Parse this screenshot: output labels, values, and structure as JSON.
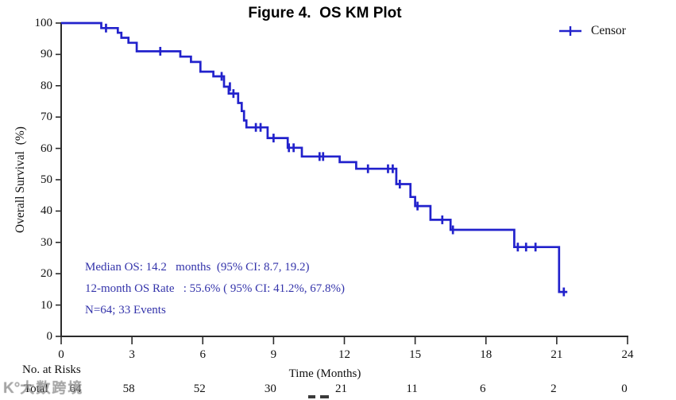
{
  "title": "Figure 4.  OS KM Plot",
  "legend": {
    "label": "Censor"
  },
  "axes": {
    "ylabel": "Overall Survival  (%)",
    "xlabel": "Time (Months)",
    "x_ticks": [
      0,
      3,
      6,
      9,
      12,
      15,
      18,
      21,
      24
    ],
    "y_ticks": [
      0,
      10,
      20,
      30,
      40,
      50,
      60,
      70,
      80,
      90,
      100
    ]
  },
  "stats": {
    "median_line": "Median OS: 14.2   months  (95% CI: 8.7, 19.2)",
    "rate_line": "12-month OS Rate   : 55.6% ( 95% CI: 41.2%, 67.8%)",
    "n_line": "N=64; 33 Events"
  },
  "risk_table": {
    "heading": "No. at Risks",
    "row_label": "Total",
    "values": [
      "64",
      "58",
      "52",
      "30",
      "21",
      "11",
      "6",
      "2",
      "0"
    ]
  },
  "watermark": {
    "logo": "K°",
    "text": "大数跨境"
  },
  "colors": {
    "curve": "#2222cc",
    "annotation": "#3333aa",
    "axis": "#2b2b2b",
    "text": "#111111"
  },
  "chart_data": {
    "type": "line",
    "subtype": "kaplan-meier-step",
    "title": "Figure 4.  OS KM Plot",
    "xlabel": "Time (Months)",
    "ylabel": "Overall Survival (%)",
    "xlim": [
      0,
      24
    ],
    "ylim": [
      0,
      100
    ],
    "grid": false,
    "legend_position": "top-right",
    "legend_entries": [
      "Censor"
    ],
    "series": [
      {
        "name": "Total",
        "color": "#2222cc",
        "steps": [
          [
            0,
            100
          ],
          [
            1.7,
            100
          ],
          [
            1.7,
            98.4
          ],
          [
            2.4,
            98.4
          ],
          [
            2.4,
            96.9
          ],
          [
            2.55,
            96.9
          ],
          [
            2.55,
            95.3
          ],
          [
            2.85,
            95.3
          ],
          [
            2.85,
            93.7
          ],
          [
            3.2,
            93.7
          ],
          [
            3.2,
            91.0
          ],
          [
            5.05,
            91.0
          ],
          [
            5.05,
            89.3
          ],
          [
            5.5,
            89.3
          ],
          [
            5.5,
            87.6
          ],
          [
            5.9,
            87.6
          ],
          [
            5.9,
            84.5
          ],
          [
            6.45,
            84.5
          ],
          [
            6.45,
            83.0
          ],
          [
            6.9,
            83.0
          ],
          [
            6.9,
            79.7
          ],
          [
            7.1,
            79.7
          ],
          [
            7.1,
            77.5
          ],
          [
            7.5,
            77.5
          ],
          [
            7.5,
            74.5
          ],
          [
            7.65,
            74.5
          ],
          [
            7.65,
            71.9
          ],
          [
            7.75,
            71.9
          ],
          [
            7.75,
            68.9
          ],
          [
            7.85,
            68.9
          ],
          [
            7.85,
            66.7
          ],
          [
            8.75,
            66.7
          ],
          [
            8.75,
            63.3
          ],
          [
            9.6,
            63.3
          ],
          [
            9.6,
            60.2
          ],
          [
            10.2,
            60.2
          ],
          [
            10.2,
            57.4
          ],
          [
            11.8,
            57.4
          ],
          [
            11.8,
            55.6
          ],
          [
            12.5,
            55.6
          ],
          [
            12.5,
            53.5
          ],
          [
            14.2,
            53.5
          ],
          [
            14.2,
            48.6
          ],
          [
            14.8,
            48.6
          ],
          [
            14.8,
            44.5
          ],
          [
            15.0,
            44.5
          ],
          [
            15.0,
            41.6
          ],
          [
            15.65,
            41.6
          ],
          [
            15.65,
            37.2
          ],
          [
            16.5,
            37.2
          ],
          [
            16.5,
            34.0
          ],
          [
            19.2,
            34.0
          ],
          [
            19.2,
            28.5
          ],
          [
            21.1,
            28.5
          ],
          [
            21.1,
            14.2
          ],
          [
            21.45,
            14.2
          ]
        ],
        "censor_marks": [
          [
            1.9,
            98.4
          ],
          [
            4.2,
            91.0
          ],
          [
            6.8,
            83.0
          ],
          [
            7.15,
            79.7
          ],
          [
            7.3,
            77.5
          ],
          [
            8.25,
            66.7
          ],
          [
            8.45,
            66.7
          ],
          [
            9.0,
            63.3
          ],
          [
            9.65,
            60.2
          ],
          [
            9.85,
            60.2
          ],
          [
            10.95,
            57.4
          ],
          [
            11.1,
            57.4
          ],
          [
            13.0,
            53.5
          ],
          [
            13.85,
            53.5
          ],
          [
            14.05,
            53.5
          ],
          [
            14.35,
            48.6
          ],
          [
            15.1,
            41.6
          ],
          [
            16.15,
            37.2
          ],
          [
            16.6,
            34.0
          ],
          [
            19.35,
            28.5
          ],
          [
            19.7,
            28.5
          ],
          [
            20.1,
            28.5
          ],
          [
            21.3,
            14.2
          ]
        ]
      }
    ],
    "risk_row": {
      "label": "Total",
      "at_times": [
        0,
        3,
        6,
        9,
        12,
        15,
        18,
        21,
        24
      ],
      "values": [
        64,
        58,
        52,
        30,
        21,
        11,
        6,
        2,
        0
      ]
    },
    "stats": {
      "median_os_months": 14.2,
      "median_os_ci": [
        8.7,
        19.2
      ],
      "os_rate_12m_pct": 55.6,
      "os_rate_12m_ci_pct": [
        41.2,
        67.8
      ],
      "n": 64,
      "events": 33
    }
  }
}
